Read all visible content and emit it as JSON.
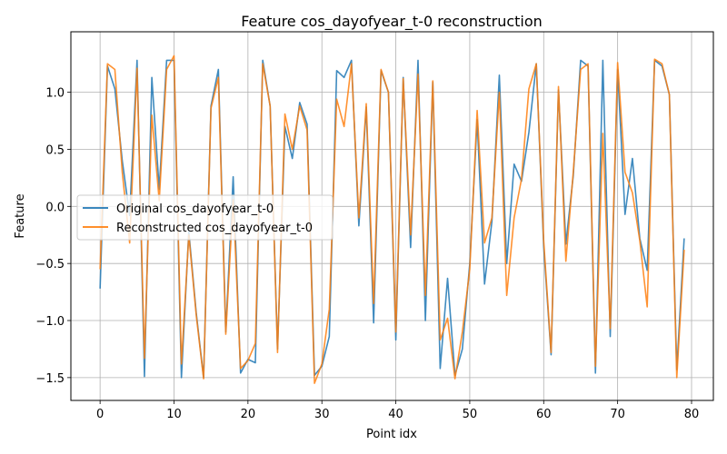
{
  "chart_data": {
    "type": "line",
    "title": "Feature cos_dayofyear_t-0 reconstruction",
    "xlabel": "Point idx",
    "ylabel": "Feature",
    "xlim": [
      -3.95,
      82.95
    ],
    "ylim": [
      -1.7,
      1.53
    ],
    "xticks": [
      0,
      10,
      20,
      30,
      40,
      50,
      60,
      70,
      80
    ],
    "yticks": [
      -1.5,
      -1.0,
      -0.5,
      0.0,
      0.5,
      1.0
    ],
    "xtick_labels": [
      "0",
      "10",
      "20",
      "30",
      "40",
      "50",
      "60",
      "70",
      "80"
    ],
    "ytick_labels": [
      "−1.5",
      "−1.0",
      "−0.5",
      "0.0",
      "0.5",
      "1.0"
    ],
    "grid": true,
    "legend_position": "center-left",
    "series": [
      {
        "name": "Original cos_dayofyear_t-0",
        "color": "#1f77b4",
        "values": [
          -0.72,
          1.23,
          1.03,
          0.4,
          -0.08,
          1.28,
          -1.49,
          1.13,
          0.15,
          1.28,
          1.28,
          -1.5,
          -0.22,
          -0.93,
          -1.5,
          0.88,
          1.2,
          -1.1,
          0.26,
          -1.46,
          -1.34,
          -1.37,
          1.28,
          0.88,
          -1.25,
          0.7,
          0.42,
          0.91,
          0.72,
          -1.48,
          -1.4,
          -1.14,
          1.19,
          1.13,
          1.28,
          -0.17,
          0.87,
          -1.02,
          1.19,
          1.0,
          -1.17,
          1.13,
          -0.36,
          1.28,
          -1.0,
          1.09,
          -1.42,
          -0.63,
          -1.48,
          -1.25,
          -0.5,
          0.76,
          -0.68,
          -0.13,
          1.15,
          -0.5,
          0.37,
          0.22,
          0.65,
          1.25,
          -0.35,
          -1.3,
          1.02,
          -0.33,
          0.27,
          1.28,
          1.23,
          -1.46,
          1.28,
          -1.14,
          1.2,
          -0.07,
          0.42,
          -0.28,
          -0.56,
          1.28,
          1.23,
          0.98,
          -1.43,
          -0.28
        ]
      },
      {
        "name": "Reconstructed cos_dayofyear_t-0",
        "color": "#ff7f0e",
        "values": [
          -0.55,
          1.25,
          1.2,
          0.3,
          -0.32,
          1.21,
          -1.33,
          0.8,
          0.05,
          1.2,
          1.32,
          -1.38,
          -0.25,
          -0.95,
          -1.51,
          0.86,
          1.13,
          -1.12,
          0.06,
          -1.42,
          -1.35,
          -1.2,
          1.25,
          0.88,
          -1.28,
          0.81,
          0.5,
          0.88,
          0.67,
          -1.55,
          -1.38,
          -0.9,
          0.94,
          0.7,
          1.25,
          -0.1,
          0.9,
          -0.85,
          1.2,
          1.0,
          -1.1,
          1.12,
          -0.25,
          1.16,
          -0.78,
          1.1,
          -1.17,
          -0.98,
          -1.51,
          -1.1,
          -0.55,
          0.84,
          -0.32,
          -0.1,
          1.0,
          -0.78,
          -0.1,
          0.24,
          1.03,
          1.25,
          -0.3,
          -1.28,
          1.05,
          -0.48,
          0.3,
          1.2,
          1.25,
          -1.4,
          0.64,
          -1.07,
          1.26,
          0.3,
          0.12,
          -0.3,
          -0.88,
          1.29,
          1.25,
          0.98,
          -1.5,
          -0.38
        ]
      }
    ]
  }
}
